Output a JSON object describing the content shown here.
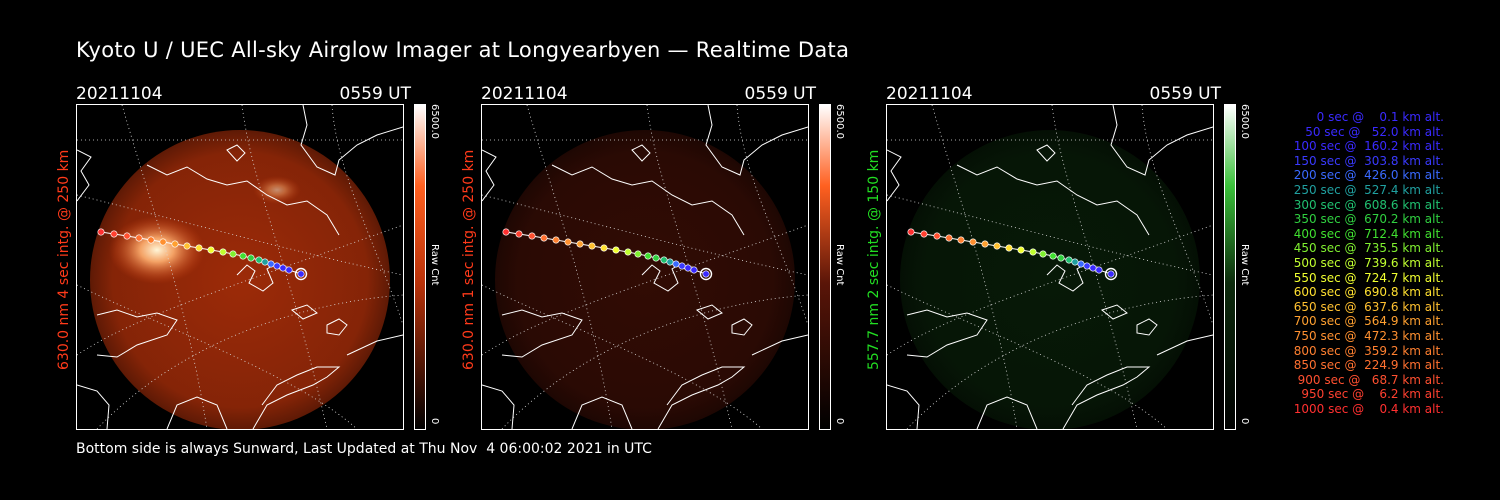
{
  "title": "Kyoto U / UEC All-sky Airglow Imager at Longyearbyen — Realtime Data",
  "panels": [
    {
      "date": "20211104",
      "time": "0559 UT",
      "ylabel": "630.0 nm 4 sec intg. @ 250 km",
      "ylabel_color": "#ff3a1a",
      "cbar_max": "6500.0",
      "cbar_min": "0",
      "cbar_unit": "Raw Cnt",
      "glow_color": "#b8320a",
      "glow_intensity": 0.85,
      "hotspot": true
    },
    {
      "date": "20211104",
      "time": "0559 UT",
      "ylabel": "630.0 nm 1 sec intg. @ 250 km",
      "ylabel_color": "#ff3a1a",
      "cbar_max": "6500.0",
      "cbar_min": "0",
      "cbar_unit": "Raw Cnt",
      "glow_color": "#5a1508",
      "glow_intensity": 0.55,
      "hotspot": false
    },
    {
      "date": "20211104",
      "time": "0559 UT",
      "ylabel": "557.7 nm 2 sec intg. @ 150 km",
      "ylabel_color": "#22dd22",
      "cbar_max": "6500.0",
      "cbar_min": "0",
      "cbar_unit": "Raw Cnt",
      "glow_color": "#0c2a0c",
      "glow_intensity": 0.6,
      "hotspot": false
    }
  ],
  "legend": [
    {
      "text": "   0 sec @    0.1 km alt.",
      "color": "#3a2aff"
    },
    {
      "text": "  50 sec @   52.0 km alt.",
      "color": "#3a2aff"
    },
    {
      "text": " 100 sec @  160.2 km alt.",
      "color": "#3a2aff"
    },
    {
      "text": " 150 sec @  303.8 km alt.",
      "color": "#3a3aff"
    },
    {
      "text": " 200 sec @  426.0 km alt.",
      "color": "#3a6aff"
    },
    {
      "text": " 250 sec @  527.4 km alt.",
      "color": "#20a0a0"
    },
    {
      "text": " 300 sec @  608.6 km alt.",
      "color": "#20c070"
    },
    {
      "text": " 350 sec @  670.2 km alt.",
      "color": "#30d040"
    },
    {
      "text": " 400 sec @  712.4 km alt.",
      "color": "#40e030"
    },
    {
      "text": " 450 sec @  735.5 km alt.",
      "color": "#80f030"
    },
    {
      "text": " 500 sec @  739.6 km alt.",
      "color": "#c0ff30"
    },
    {
      "text": " 550 sec @  724.7 km alt.",
      "color": "#f0ff30"
    },
    {
      "text": " 600 sec @  690.8 km alt.",
      "color": "#ffe030"
    },
    {
      "text": " 650 sec @  637.6 km alt.",
      "color": "#ffc030"
    },
    {
      "text": " 700 sec @  564.9 km alt.",
      "color": "#ffa030"
    },
    {
      "text": " 750 sec @  472.3 km alt.",
      "color": "#ff9030"
    },
    {
      "text": " 800 sec @  359.2 km alt.",
      "color": "#ff8030"
    },
    {
      "text": " 850 sec @  224.9 km alt.",
      "color": "#ff7030"
    },
    {
      "text": " 900 sec @   68.7 km alt.",
      "color": "#ff5030"
    },
    {
      "text": " 950 sec @    6.2 km alt.",
      "color": "#ff4030"
    },
    {
      "text": "1000 sec @    0.4 km alt.",
      "color": "#ff3030"
    }
  ],
  "footer": "Bottom side is always Sunward, Last Updated at Thu Nov  4 06:00:02 2021 in UTC"
}
